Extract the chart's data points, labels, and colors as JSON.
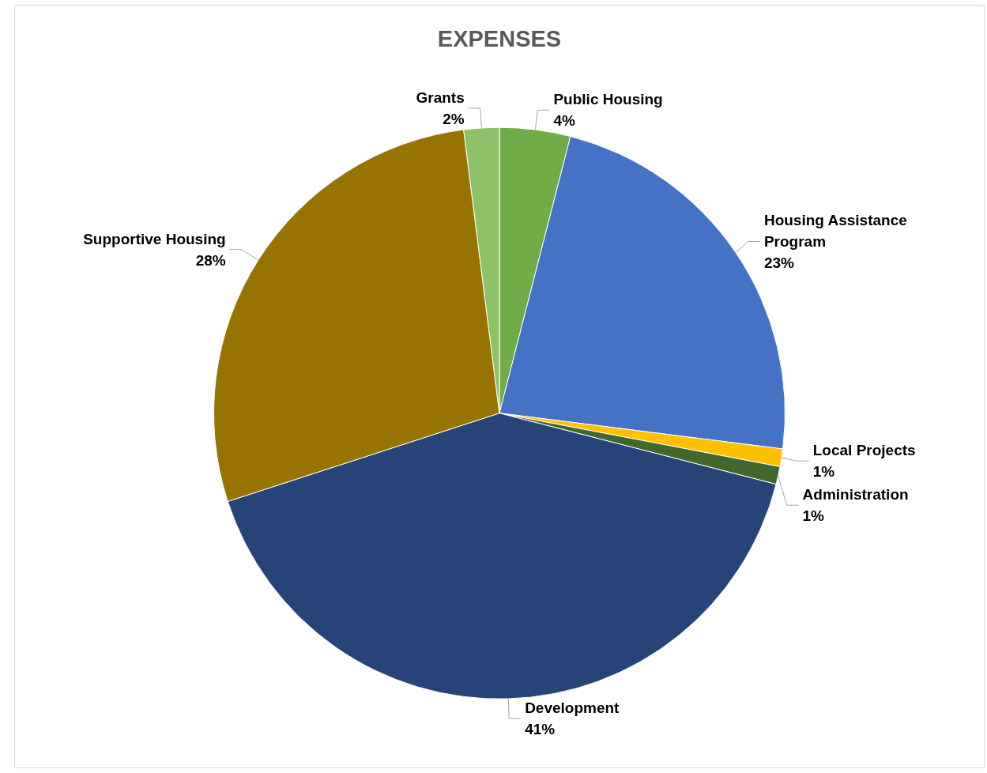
{
  "chart_data": {
    "type": "pie",
    "title": "EXPENSES",
    "categories": [
      "Public Housing",
      "Housing Assistance Program",
      "Local Projects",
      "Administration",
      "Development",
      "Supportive Housing",
      "Grants"
    ],
    "values": [
      4,
      23,
      1,
      1,
      41,
      28,
      2
    ],
    "value_labels": [
      "4%",
      "23%",
      "1%",
      "1%",
      "41%",
      "28%",
      "2%"
    ],
    "colors": [
      "#70ad47",
      "#4472c4",
      "#ffc000",
      "#43682b",
      "#264478",
      "#997300",
      "#8cc168"
    ],
    "legend": false
  }
}
